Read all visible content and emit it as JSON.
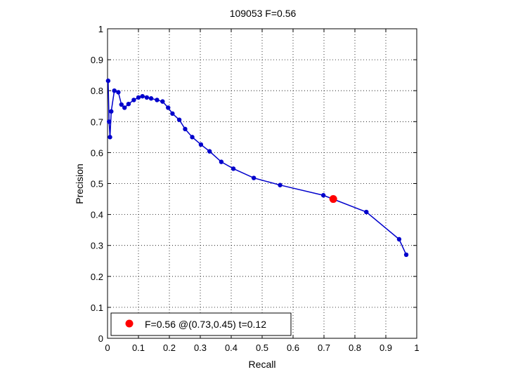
{
  "chart_data": {
    "type": "line",
    "title": "109053 F=0.56",
    "xlabel": "Recall",
    "ylabel": "Precision",
    "xlim": [
      0,
      1
    ],
    "ylim": [
      0,
      1
    ],
    "grid": true,
    "xticks": [
      "0",
      "0.1",
      "0.2",
      "0.3",
      "0.4",
      "0.5",
      "0.6",
      "0.7",
      "0.8",
      "0.9",
      "1"
    ],
    "yticks": [
      "0",
      "0.1",
      "0.2",
      "0.3",
      "0.4",
      "0.5",
      "0.6",
      "0.7",
      "0.8",
      "0.9",
      "1"
    ],
    "series": [
      {
        "color": "#0000cc",
        "marker": "dot",
        "x": [
          0.002,
          0.005,
          0.008,
          0.012,
          0.022,
          0.035,
          0.045,
          0.055,
          0.068,
          0.085,
          0.1,
          0.113,
          0.127,
          0.141,
          0.16,
          0.178,
          0.196,
          0.21,
          0.232,
          0.251,
          0.274,
          0.302,
          0.33,
          0.368,
          0.407,
          0.473,
          0.558,
          0.698,
          0.837,
          0.943,
          0.966
        ],
        "y": [
          0.832,
          0.7,
          0.65,
          0.733,
          0.8,
          0.795,
          0.755,
          0.745,
          0.757,
          0.77,
          0.778,
          0.782,
          0.778,
          0.775,
          0.77,
          0.765,
          0.745,
          0.726,
          0.706,
          0.676,
          0.65,
          0.626,
          0.604,
          0.57,
          0.548,
          0.518,
          0.495,
          0.462,
          0.408,
          0.32,
          0.27
        ]
      }
    ],
    "highlight_point": {
      "x": 0.73,
      "y": 0.45,
      "color": "#ff0000"
    },
    "legend": {
      "placement": "bottom-left",
      "entries": [
        {
          "label": "F=0.56 @(0.73,0.45) t=0.12",
          "color": "#ff0000",
          "marker": "dot"
        }
      ]
    }
  }
}
